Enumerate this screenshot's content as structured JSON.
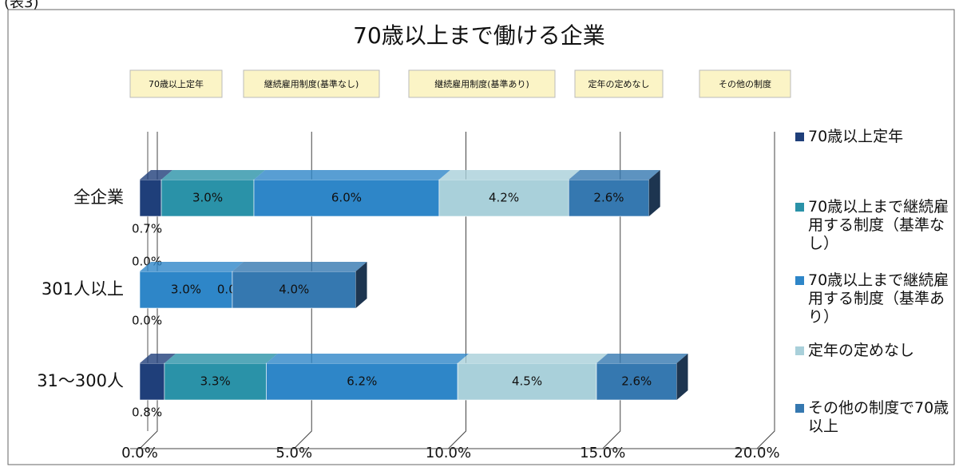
{
  "chart_data": {
    "type": "bar",
    "orientation": "horizontal",
    "stacked": true,
    "note": "(表3)",
    "title": "70歳以上まで働ける企業",
    "annotations": [
      "70歳以上定年",
      "継続雇用制度(基準なし)",
      "継続雇用制度(基準あり)",
      "定年の定めなし",
      "その他の制度"
    ],
    "categories": [
      "全企業",
      "301人以上",
      "31～300人"
    ],
    "series": [
      {
        "name": "70歳以上定年",
        "color": "#1f3f7a",
        "values": [
          0.7,
          0.0,
          0.8
        ],
        "value_labels": [
          "0.7%",
          "0.0%",
          "0.8%"
        ]
      },
      {
        "name": "70歳以上まで継続雇用する制度（基準なし）",
        "color": "#2a92a8",
        "values": [
          3.0,
          0.0,
          3.3
        ],
        "value_labels": [
          "3.0%",
          "0.0%",
          "3.3%"
        ]
      },
      {
        "name": "70歳以上まで継続雇用する制度（基準あり）",
        "color": "#2e86c8",
        "values": [
          6.0,
          3.0,
          6.2
        ],
        "value_labels": [
          "6.0%",
          "3.0%",
          "6.2%"
        ]
      },
      {
        "name": "定年の定めなし",
        "color": "#a9d0da",
        "values": [
          4.2,
          0.0,
          4.5
        ],
        "value_labels": [
          "4.2%",
          "0.0%",
          "4.5%"
        ]
      },
      {
        "name": "その他の制度で70歳以上",
        "color": "#3578b0",
        "values": [
          2.6,
          4.0,
          2.6
        ],
        "value_labels": [
          "2.6%",
          "4.0%",
          "2.6%"
        ]
      }
    ],
    "xlim": [
      0,
      20
    ],
    "xticks": [
      {
        "value": 0,
        "label": "0.0%"
      },
      {
        "value": 5,
        "label": "5.0%"
      },
      {
        "value": 10,
        "label": "10.0%"
      },
      {
        "value": 15,
        "label": "15.0%"
      },
      {
        "value": 20,
        "label": "20.0%"
      }
    ],
    "grid": true,
    "legend": "right"
  }
}
